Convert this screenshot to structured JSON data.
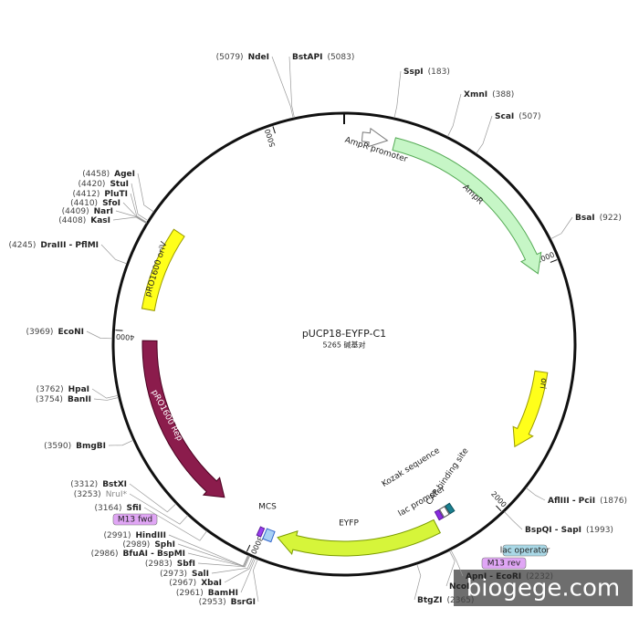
{
  "title": "pUCP18-EYFP-C1",
  "subtitle": "5265 碱基对",
  "ticks": [
    "1000",
    "2000",
    "3000",
    "4000",
    "5000"
  ],
  "sites": [
    {
      "name": "NdeI",
      "position": "(5079)"
    },
    {
      "name": "BstAPI",
      "position": "(5083)"
    },
    {
      "name": "SspI",
      "position": "(183)"
    },
    {
      "name": "XmnI",
      "position": "(388)"
    },
    {
      "name": "ScaI",
      "position": "(507)"
    },
    {
      "name": "BsaI",
      "position": "(922)"
    },
    {
      "name": "AflIII - PciI",
      "position": "(1876)"
    },
    {
      "name": "BspQI - SapI",
      "position": "(1993)"
    },
    {
      "name": "ApnI - EcoRI",
      "position": "(2232)"
    },
    {
      "name": "NcoI"
    },
    {
      "name": "BtgZI",
      "position": "(2365)"
    },
    {
      "name": "BsrGI",
      "position": "(2953)"
    },
    {
      "name": "BamHI",
      "position": "(2961)"
    },
    {
      "name": "XbaI",
      "position": "(2967)"
    },
    {
      "name": "SalI",
      "position": "(2973)"
    },
    {
      "name": "SbfI",
      "position": "(2983)"
    },
    {
      "name": "BfuAI - BspMI",
      "position": "(2986)"
    },
    {
      "name": "SphI",
      "position": "(2989)"
    },
    {
      "name": "HindIII",
      "position": "(2991)"
    },
    {
      "name": "SfiI",
      "position": "(3164)"
    },
    {
      "name": "NruI*",
      "position": "(3253)"
    },
    {
      "name": "BstXI",
      "position": "(3312)"
    },
    {
      "name": "BmgBI",
      "position": "(3590)"
    },
    {
      "name": "BanII",
      "position": "(3754)"
    },
    {
      "name": "HpaI",
      "position": "(3762)"
    },
    {
      "name": "EcoNI",
      "position": "(3969)"
    },
    {
      "name": "DraIII - PflMI",
      "position": "(4245)"
    },
    {
      "name": "KasI",
      "position": "(4408)"
    },
    {
      "name": "NarI",
      "position": "(4409)"
    },
    {
      "name": "SfoI",
      "position": "(4410)"
    },
    {
      "name": "PluTI",
      "position": "(4412)"
    },
    {
      "name": "StuI",
      "position": "(4420)"
    },
    {
      "name": "AgeI",
      "position": "(4458)"
    }
  ],
  "features": [
    {
      "label": "AmpR promoter"
    },
    {
      "label": "AmpR"
    },
    {
      "label": "ori"
    },
    {
      "label": "Kozak sequence"
    },
    {
      "label": "CAP binding site"
    },
    {
      "label": "lac promoter"
    },
    {
      "label": "lac operator"
    },
    {
      "label": "M13 rev"
    },
    {
      "label": "EYFP"
    },
    {
      "label": "MCS"
    },
    {
      "label": "M13 fwd"
    },
    {
      "label": "pRO1600 Rep"
    },
    {
      "label": "pRO1600 oriV"
    }
  ],
  "watermark": "biogege.com"
}
